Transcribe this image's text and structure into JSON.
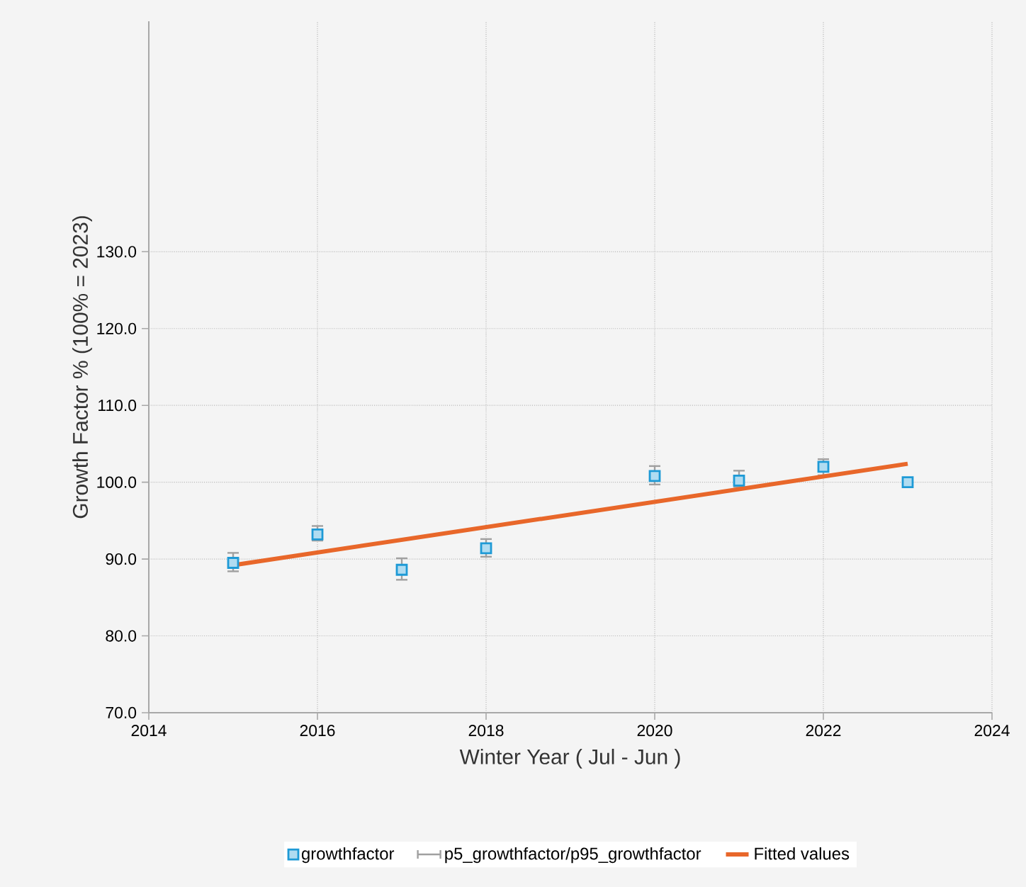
{
  "chart_data": {
    "type": "scatter",
    "xlabel": "Winter Year ( Jul - Jun )",
    "ylabel": "Growth Factor % (100% = 2023)",
    "x": [
      2015,
      2016,
      2017,
      2018,
      2020,
      2021,
      2022,
      2023
    ],
    "series": [
      {
        "name": "growthfactor",
        "color": "#1e9ad6",
        "marker": "square",
        "values": [
          89.5,
          93.2,
          88.6,
          91.4,
          100.8,
          100.2,
          102.0,
          100.0
        ],
        "errors": [
          [
            88.4,
            90.8
          ],
          [
            92.4,
            94.3
          ],
          [
            87.3,
            90.1
          ],
          [
            90.3,
            92.6
          ],
          [
            99.7,
            102.1
          ],
          [
            99.4,
            101.5
          ],
          [
            100.9,
            103.0
          ],
          null
        ]
      },
      {
        "name": "p5_growthfactor/p95_growthfactor",
        "color": "#a0a0a0",
        "marker": "none",
        "values": [
          null,
          null,
          null,
          null,
          null,
          null,
          null,
          null
        ]
      },
      {
        "name": "Fitted values",
        "type": "line",
        "color": "#e8672a",
        "marker": "none",
        "x": [
          2015,
          2023
        ],
        "values": [
          89.2,
          102.4
        ]
      }
    ],
    "xlim": [
      2014,
      2024
    ],
    "ylim": [
      70,
      160
    ],
    "xticks": [
      2014,
      2016,
      2018,
      2020,
      2022,
      2024
    ],
    "yticks": [
      {
        "value": 70,
        "label": "70.0"
      },
      {
        "value": 80,
        "label": "80.0"
      },
      {
        "value": 90,
        "label": "90.0"
      },
      {
        "value": 100,
        "label": "100.0"
      },
      {
        "value": 110,
        "label": "110.0"
      },
      {
        "value": 120,
        "label": "120.0"
      },
      {
        "value": 130,
        "label": "130.0"
      }
    ],
    "grid": true,
    "legend": "bottom"
  }
}
